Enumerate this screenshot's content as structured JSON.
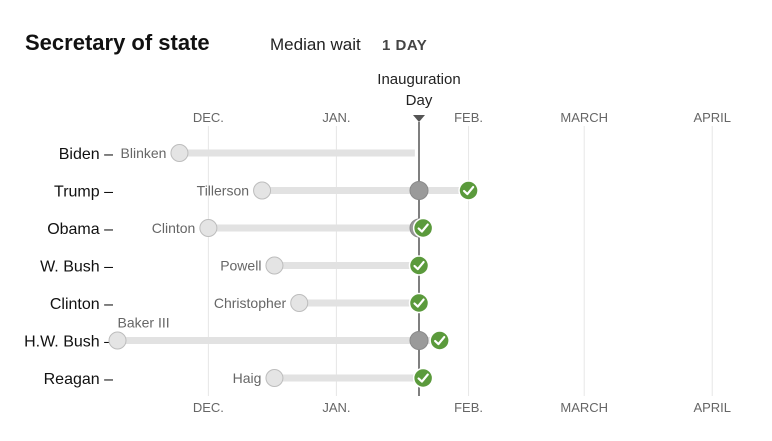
{
  "header": {
    "title": "Secretary of state",
    "median_label": "Median wait",
    "median_value": "1 DAY"
  },
  "colors": {
    "track": "#e2e2e2",
    "nominee_dot": "#e4e4e4",
    "inauguration_dot": "#9a9a9a",
    "confirmed": "#5b9a3c",
    "gridline": "#e6e6e6",
    "inauguration_line": "#555555"
  },
  "chart_data": {
    "type": "scatter",
    "title": "Secretary of state",
    "annotation": "Inauguration Day",
    "x_unit": "days relative to Inauguration Day",
    "month_ticks": [
      {
        "label": "DEC.",
        "day": -51
      },
      {
        "label": "JAN.",
        "day": -20
      },
      {
        "label": "FEB.",
        "day": 12
      },
      {
        "label": "MARCH",
        "day": 40
      },
      {
        "label": "APRIL",
        "day": 71
      }
    ],
    "rows": [
      {
        "president": "Biden",
        "nominee": "Blinken",
        "nominated_day": -58,
        "confirmed_day": null,
        "track_end_day": -1,
        "inauguration_marker": false,
        "label_above": false
      },
      {
        "president": "Trump",
        "nominee": "Tillerson",
        "nominated_day": -38,
        "confirmed_day": 12,
        "inauguration_marker": true,
        "label_above": false
      },
      {
        "president": "Obama",
        "nominee": "Clinton",
        "nominated_day": -51,
        "confirmed_day": 1,
        "inauguration_marker": true,
        "label_above": false
      },
      {
        "president": "W. Bush",
        "nominee": "Powell",
        "nominated_day": -35,
        "confirmed_day": 0,
        "inauguration_marker": false,
        "label_above": false
      },
      {
        "president": "Clinton",
        "nominee": "Christopher",
        "nominated_day": -29,
        "confirmed_day": 0,
        "inauguration_marker": false,
        "label_above": false
      },
      {
        "president": "H.W. Bush",
        "nominee": "Baker III",
        "nominated_day": -73,
        "confirmed_day": 5,
        "inauguration_marker": true,
        "label_above": true
      },
      {
        "president": "Reagan",
        "nominee": "Haig",
        "nominated_day": -35,
        "confirmed_day": 1,
        "inauguration_marker": false,
        "label_above": false
      }
    ]
  }
}
